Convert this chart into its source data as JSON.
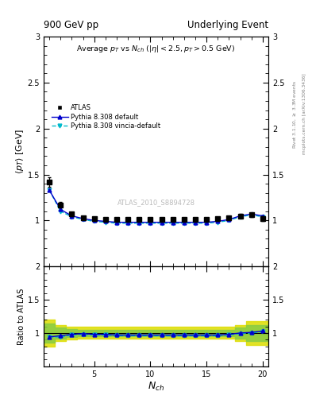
{
  "top_left_label": "900 GeV pp",
  "top_right_label": "Underlying Event",
  "title": "Average $p_{T}$ vs $N_{ch}$ ($|\\eta| < 2.5, p_{T} > 0.5$ GeV)",
  "xlabel": "$N_{ch}$",
  "ylabel_main": "$\\langle p_{T} \\rangle$ [GeV]",
  "ylabel_ratio": "Ratio to ATLAS",
  "right_label_top": "Rivet 3.1.10, $\\geq$ 3.3M events",
  "right_label_bottom": "mcplots.cern.ch [arXiv:1306.3436]",
  "watermark": "ATLAS_2010_S8894728",
  "atlas_x": [
    1,
    2,
    3,
    4,
    5,
    6,
    7,
    8,
    9,
    10,
    11,
    12,
    13,
    14,
    15,
    16,
    17,
    18,
    19,
    20
  ],
  "atlas_y": [
    1.42,
    1.17,
    1.07,
    1.03,
    1.02,
    1.01,
    1.01,
    1.01,
    1.01,
    1.01,
    1.01,
    1.01,
    1.01,
    1.01,
    1.01,
    1.02,
    1.03,
    1.05,
    1.06,
    1.02
  ],
  "atlas_yerr": [
    0.05,
    0.03,
    0.02,
    0.02,
    0.02,
    0.02,
    0.02,
    0.02,
    0.02,
    0.02,
    0.02,
    0.02,
    0.02,
    0.02,
    0.02,
    0.02,
    0.02,
    0.02,
    0.02,
    0.03
  ],
  "py308_x": [
    1,
    2,
    3,
    4,
    5,
    6,
    7,
    8,
    9,
    10,
    11,
    12,
    13,
    14,
    15,
    16,
    17,
    18,
    19,
    20
  ],
  "py308_y": [
    1.33,
    1.12,
    1.05,
    1.02,
    1.0,
    0.99,
    0.98,
    0.98,
    0.98,
    0.98,
    0.98,
    0.98,
    0.98,
    0.98,
    0.98,
    0.99,
    1.01,
    1.05,
    1.07,
    1.05
  ],
  "py308vinc_x": [
    1,
    2,
    3,
    4,
    5,
    6,
    7,
    8,
    9,
    10,
    11,
    12,
    13,
    14,
    15,
    16,
    17,
    18,
    19,
    20
  ],
  "py308vinc_y": [
    1.33,
    1.1,
    1.04,
    1.01,
    0.99,
    0.98,
    0.97,
    0.97,
    0.97,
    0.97,
    0.97,
    0.97,
    0.97,
    0.97,
    0.97,
    0.98,
    1.0,
    1.04,
    1.06,
    1.04
  ],
  "ratio_py308_y": [
    0.94,
    0.96,
    0.98,
    0.99,
    0.98,
    0.98,
    0.97,
    0.97,
    0.97,
    0.97,
    0.97,
    0.97,
    0.97,
    0.97,
    0.97,
    0.97,
    0.98,
    1.0,
    1.01,
    1.03
  ],
  "ratio_py308vinc_y": [
    0.94,
    0.94,
    0.97,
    0.98,
    0.97,
    0.97,
    0.96,
    0.96,
    0.96,
    0.96,
    0.96,
    0.96,
    0.96,
    0.96,
    0.96,
    0.96,
    0.97,
    0.99,
    1.0,
    1.02
  ],
  "atlas_band_x": [
    0.5,
    1.5,
    2.5,
    3.5,
    4.5,
    5.5,
    6.5,
    7.5,
    8.5,
    9.5,
    10.5,
    11.5,
    12.5,
    13.5,
    14.5,
    15.5,
    16.5,
    17.5,
    18.5,
    19.5,
    20.5
  ],
  "atlas_band_lo": [
    0.86,
    0.86,
    0.92,
    0.94,
    0.95,
    0.95,
    0.95,
    0.95,
    0.95,
    0.95,
    0.95,
    0.95,
    0.95,
    0.95,
    0.95,
    0.95,
    0.95,
    0.95,
    0.92,
    0.88,
    0.88
  ],
  "atlas_band_hi": [
    1.14,
    1.14,
    1.08,
    1.06,
    1.05,
    1.05,
    1.05,
    1.05,
    1.05,
    1.05,
    1.05,
    1.05,
    1.05,
    1.05,
    1.05,
    1.05,
    1.05,
    1.05,
    1.08,
    1.12,
    1.12
  ],
  "atlas_band2_lo": [
    0.8,
    0.8,
    0.88,
    0.9,
    0.91,
    0.91,
    0.91,
    0.91,
    0.91,
    0.91,
    0.91,
    0.91,
    0.91,
    0.91,
    0.91,
    0.91,
    0.91,
    0.91,
    0.88,
    0.82,
    0.82
  ],
  "atlas_band2_hi": [
    1.2,
    1.2,
    1.12,
    1.1,
    1.09,
    1.09,
    1.09,
    1.09,
    1.09,
    1.09,
    1.09,
    1.09,
    1.09,
    1.09,
    1.09,
    1.09,
    1.09,
    1.09,
    1.12,
    1.18,
    1.18
  ],
  "color_atlas": "#000000",
  "color_py308": "#0000cc",
  "color_py308vinc": "#00bbcc",
  "color_band_yellow": "#dddd00",
  "color_band_green": "#88cc44",
  "ylim_main": [
    0.5,
    3.0
  ],
  "ylim_ratio": [
    0.5,
    2.0
  ],
  "xlim": [
    0.5,
    20.5
  ]
}
